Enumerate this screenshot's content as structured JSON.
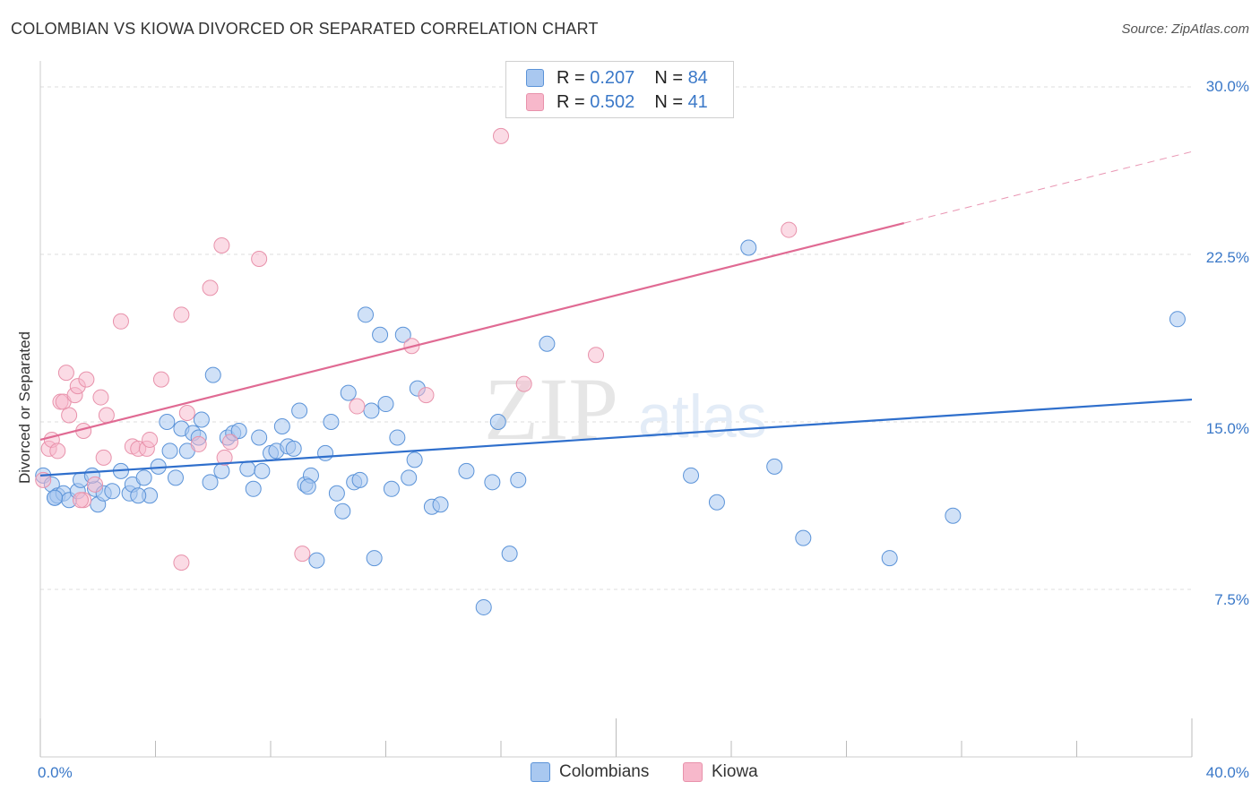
{
  "header": {
    "title": "COLOMBIAN VS KIOWA DIVORCED OR SEPARATED CORRELATION CHART",
    "source": "Source: ZipAtlas.com"
  },
  "watermark": {
    "zip": "ZIP",
    "atlas": "atlas"
  },
  "legend_top": {
    "rows": [
      {
        "r_label": "R =",
        "r_value": "0.207",
        "n_label": "N =",
        "n_value": "84",
        "color": "#a9c8f0"
      },
      {
        "r_label": "R =",
        "r_value": "0.502",
        "n_label": "N =",
        "n_value": "41",
        "color": "#f7b8cb"
      }
    ]
  },
  "legend_bottom": {
    "items": [
      "Colombians",
      "Kiowa"
    ]
  },
  "colors": {
    "blue_fill": "#a9c8f0",
    "blue_stroke": "#5b93d8",
    "blue_line": "#2f6fcc",
    "pink_fill": "#f7b8cb",
    "pink_stroke": "#e892ab",
    "pink_line": "#e06a93",
    "tick_text": "#3a78c8",
    "grid": "#dddddd"
  },
  "chart_data": {
    "type": "scatter",
    "title": "COLOMBIAN VS KIOWA DIVORCED OR SEPARATED CORRELATION CHART",
    "xlabel": "",
    "ylabel": "Divorced or Separated",
    "xlim": [
      0,
      40
    ],
    "ylim": [
      0,
      30
    ],
    "x_tick_labels": [
      "0.0%",
      "40.0%"
    ],
    "y_ticks": [
      7.5,
      15.0,
      22.5,
      30.0
    ],
    "y_tick_labels": [
      "7.5%",
      "15.0%",
      "22.5%",
      "30.0%"
    ],
    "grid": "horizontal dashed",
    "legend_placement": "top-center and bottom",
    "series": [
      {
        "name": "Colombians",
        "r": 0.207,
        "n": 84,
        "trend": {
          "x": [
            0,
            40
          ],
          "y": [
            12.6,
            16.0
          ]
        },
        "points": [
          [
            0.1,
            12.6
          ],
          [
            0.4,
            12.2
          ],
          [
            0.5,
            11.6
          ],
          [
            0.6,
            11.7
          ],
          [
            0.8,
            11.8
          ],
          [
            1.0,
            11.5
          ],
          [
            1.3,
            11.9
          ],
          [
            1.4,
            12.4
          ],
          [
            1.9,
            12.0
          ],
          [
            1.8,
            12.6
          ],
          [
            2.0,
            11.3
          ],
          [
            2.2,
            11.8
          ],
          [
            2.8,
            12.8
          ],
          [
            3.1,
            11.8
          ],
          [
            3.2,
            12.2
          ],
          [
            3.6,
            12.5
          ],
          [
            3.8,
            11.7
          ],
          [
            4.1,
            13.0
          ],
          [
            4.4,
            15.0
          ],
          [
            4.5,
            13.7
          ],
          [
            4.7,
            12.5
          ],
          [
            4.9,
            14.7
          ],
          [
            5.1,
            13.7
          ],
          [
            5.3,
            14.5
          ],
          [
            5.5,
            14.3
          ],
          [
            5.6,
            15.1
          ],
          [
            5.9,
            12.3
          ],
          [
            6.0,
            17.1
          ],
          [
            6.3,
            12.8
          ],
          [
            6.5,
            14.3
          ],
          [
            6.7,
            14.5
          ],
          [
            6.9,
            14.6
          ],
          [
            7.2,
            12.9
          ],
          [
            7.4,
            12.0
          ],
          [
            7.6,
            14.3
          ],
          [
            7.7,
            12.8
          ],
          [
            8.0,
            13.6
          ],
          [
            8.2,
            13.7
          ],
          [
            8.4,
            14.8
          ],
          [
            8.6,
            13.9
          ],
          [
            8.8,
            13.8
          ],
          [
            9.0,
            15.5
          ],
          [
            9.2,
            12.2
          ],
          [
            9.4,
            12.6
          ],
          [
            9.6,
            8.8
          ],
          [
            9.9,
            13.6
          ],
          [
            10.1,
            15.0
          ],
          [
            10.3,
            11.8
          ],
          [
            10.5,
            11.0
          ],
          [
            10.7,
            16.3
          ],
          [
            10.9,
            12.3
          ],
          [
            11.1,
            12.4
          ],
          [
            11.3,
            19.8
          ],
          [
            11.5,
            15.5
          ],
          [
            11.6,
            8.9
          ],
          [
            11.8,
            18.9
          ],
          [
            12.0,
            15.8
          ],
          [
            12.2,
            12.0
          ],
          [
            12.4,
            14.3
          ],
          [
            12.6,
            18.9
          ],
          [
            12.8,
            12.5
          ],
          [
            13.0,
            13.3
          ],
          [
            13.1,
            16.5
          ],
          [
            13.6,
            11.2
          ],
          [
            13.9,
            11.3
          ],
          [
            14.8,
            12.8
          ],
          [
            15.4,
            6.7
          ],
          [
            15.7,
            12.3
          ],
          [
            15.9,
            15.0
          ],
          [
            16.3,
            9.1
          ],
          [
            16.6,
            12.4
          ],
          [
            17.6,
            18.5
          ],
          [
            22.6,
            12.6
          ],
          [
            23.5,
            11.4
          ],
          [
            24.6,
            22.8
          ],
          [
            25.5,
            13.0
          ],
          [
            26.5,
            9.8
          ],
          [
            29.5,
            8.9
          ],
          [
            31.7,
            10.8
          ],
          [
            39.5,
            19.6
          ],
          [
            0.5,
            11.6
          ],
          [
            2.5,
            11.9
          ],
          [
            3.4,
            11.7
          ],
          [
            9.3,
            12.1
          ]
        ]
      },
      {
        "name": "Kiowa",
        "r": 0.502,
        "n": 41,
        "trend": {
          "x": [
            0,
            30.0
          ],
          "y": [
            14.2,
            23.9
          ]
        },
        "trend_dashed": {
          "x": [
            30.0,
            40
          ],
          "y": [
            23.9,
            27.1
          ]
        },
        "points": [
          [
            0.1,
            12.4
          ],
          [
            0.3,
            13.8
          ],
          [
            0.4,
            14.2
          ],
          [
            0.6,
            13.7
          ],
          [
            0.7,
            15.9
          ],
          [
            0.8,
            15.9
          ],
          [
            0.9,
            17.2
          ],
          [
            1.0,
            15.3
          ],
          [
            1.2,
            16.2
          ],
          [
            1.3,
            16.6
          ],
          [
            1.5,
            14.6
          ],
          [
            1.6,
            16.9
          ],
          [
            1.5,
            11.5
          ],
          [
            1.9,
            12.2
          ],
          [
            2.1,
            16.1
          ],
          [
            2.2,
            13.4
          ],
          [
            2.3,
            15.3
          ],
          [
            2.8,
            19.5
          ],
          [
            3.2,
            13.9
          ],
          [
            3.4,
            13.8
          ],
          [
            3.7,
            13.8
          ],
          [
            3.8,
            14.2
          ],
          [
            4.2,
            16.9
          ],
          [
            4.9,
            19.8
          ],
          [
            4.9,
            8.7
          ],
          [
            5.1,
            15.4
          ],
          [
            5.5,
            14.0
          ],
          [
            5.9,
            21.0
          ],
          [
            6.3,
            22.9
          ],
          [
            6.4,
            13.4
          ],
          [
            6.6,
            14.1
          ],
          [
            7.6,
            22.3
          ],
          [
            9.1,
            9.1
          ],
          [
            11.0,
            15.7
          ],
          [
            12.9,
            18.4
          ],
          [
            13.4,
            16.2
          ],
          [
            16.0,
            27.8
          ],
          [
            16.8,
            16.7
          ],
          [
            19.3,
            18.0
          ],
          [
            26.0,
            23.6
          ],
          [
            1.4,
            11.5
          ]
        ]
      }
    ]
  }
}
